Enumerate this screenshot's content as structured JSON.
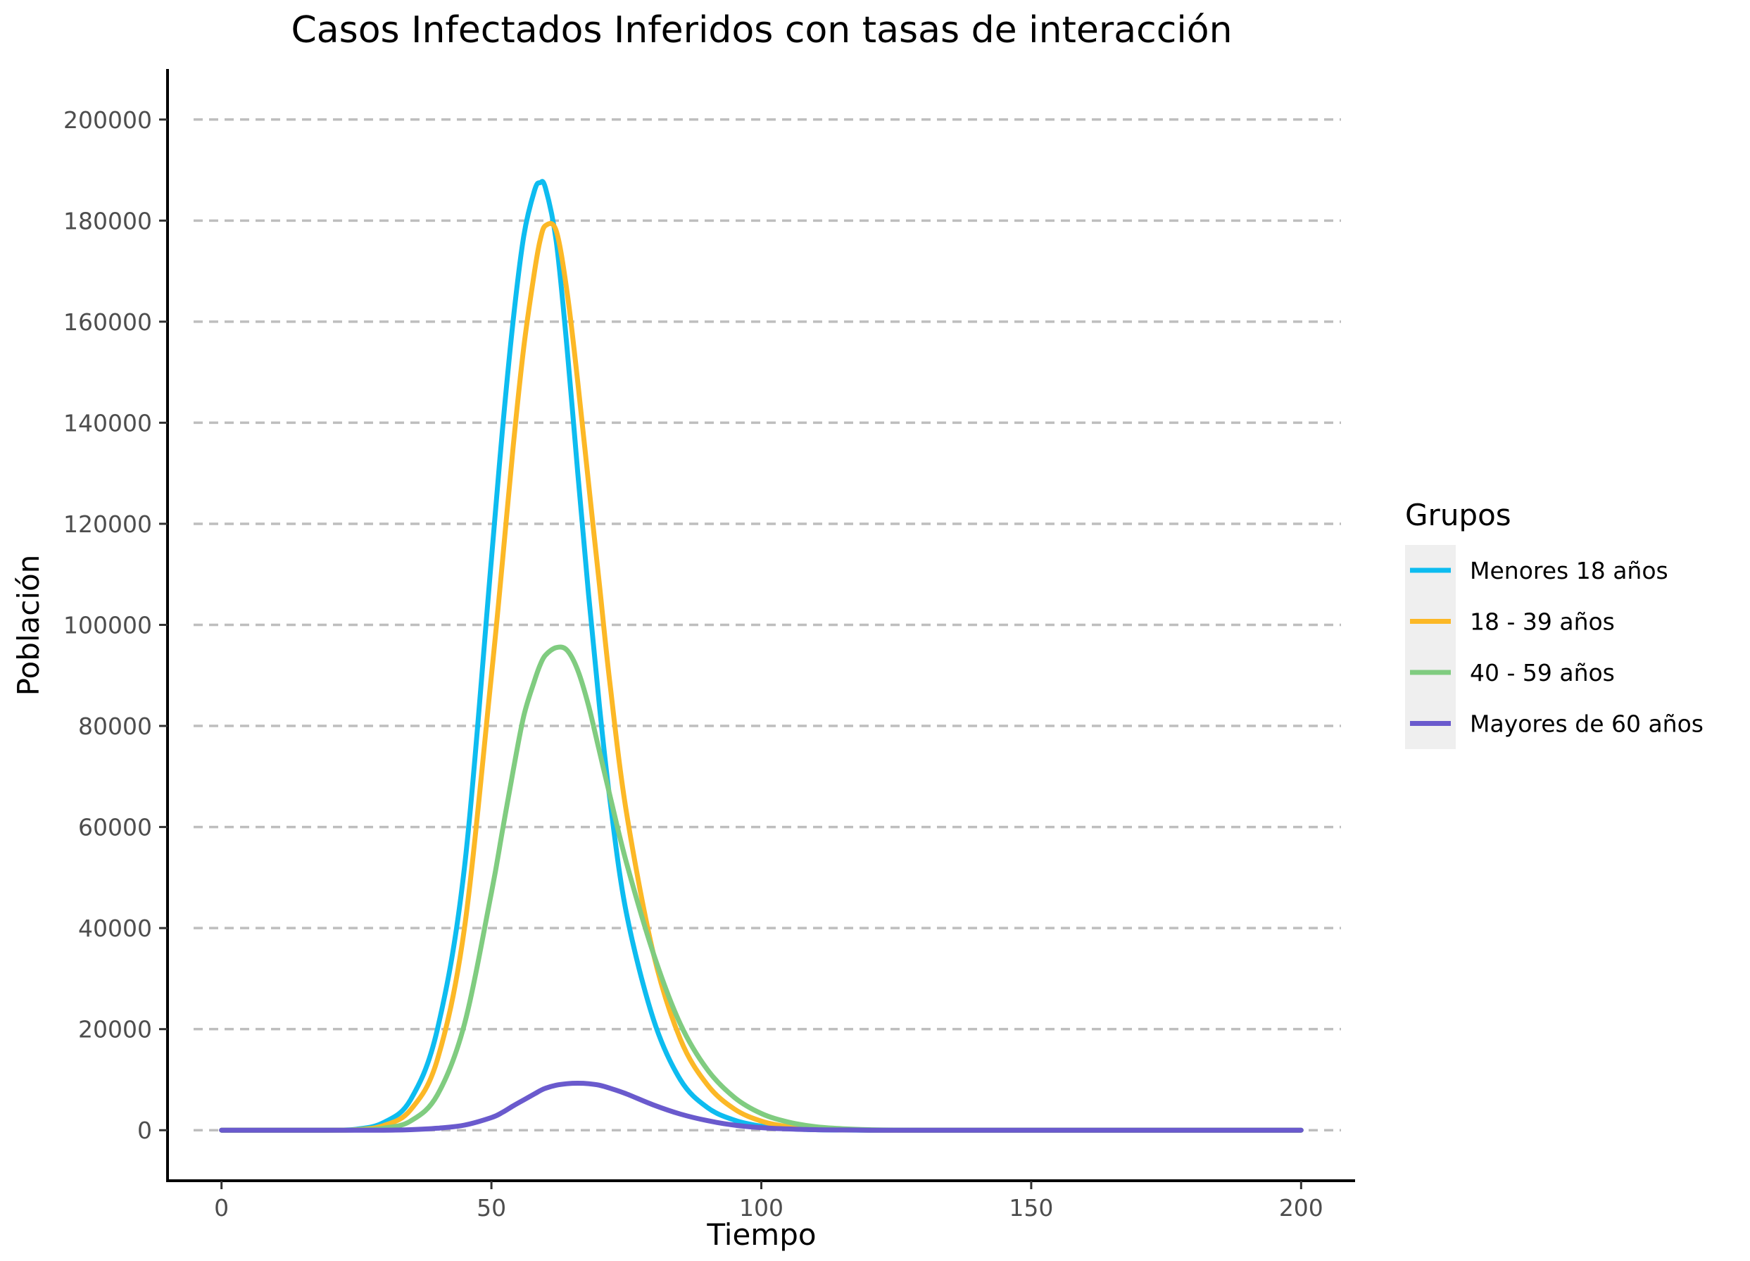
{
  "chart_data": {
    "type": "line",
    "title": "Casos Infectados Inferidos con tasas de interacción",
    "xlabel": "Tiempo",
    "ylabel": "Población",
    "xlim": [
      -10,
      210
    ],
    "ylim": [
      -10000,
      210000
    ],
    "xticks": [
      0,
      50,
      100,
      150,
      200
    ],
    "yticks": [
      0,
      20000,
      40000,
      60000,
      80000,
      100000,
      120000,
      140000,
      160000,
      180000,
      200000
    ],
    "grid": "horizontal dashed",
    "legend": {
      "title": "Grupos",
      "placement": "right"
    },
    "x": [
      0,
      5,
      10,
      15,
      20,
      25,
      30,
      35,
      40,
      45,
      50,
      52,
      54,
      56,
      58,
      59,
      60,
      62,
      64,
      66,
      68,
      70,
      72,
      75,
      80,
      85,
      90,
      95,
      100,
      105,
      110,
      115,
      120,
      125,
      130,
      140,
      150,
      160,
      170,
      180,
      190,
      200
    ],
    "series": [
      {
        "name": "Menores 18 años",
        "color": "#0dbcf0",
        "values": [
          0,
          0,
          0,
          0,
          20,
          200,
          1500,
          6000,
          20000,
          52000,
          113000,
          138000,
          160000,
          177000,
          186000,
          187500,
          186500,
          176000,
          155000,
          130000,
          106000,
          84000,
          65000,
          43000,
          22000,
          10000,
          4500,
          2000,
          800,
          300,
          100,
          30,
          0,
          0,
          0,
          0,
          0,
          0,
          0,
          0,
          0,
          0
        ]
      },
      {
        "name": "18 - 39 años",
        "color": "#fcb826",
        "values": [
          0,
          0,
          0,
          0,
          10,
          100,
          900,
          4000,
          14000,
          40000,
          90000,
          112000,
          135000,
          155000,
          170000,
          176000,
          179000,
          178000,
          166000,
          148000,
          128000,
          108000,
          88000,
          63000,
          35000,
          18000,
          9000,
          4200,
          1800,
          700,
          250,
          80,
          20,
          0,
          0,
          0,
          0,
          0,
          0,
          0,
          0,
          0
        ]
      },
      {
        "name": "40 - 59 años",
        "color": "#80cc80",
        "values": [
          0,
          0,
          0,
          0,
          0,
          50,
          400,
          1800,
          7000,
          21000,
          47000,
          59000,
          71000,
          82000,
          89000,
          92000,
          94000,
          95500,
          95000,
          91000,
          84000,
          75000,
          66000,
          53000,
          35000,
          21000,
          12000,
          6500,
          3300,
          1600,
          700,
          300,
          100,
          30,
          0,
          0,
          0,
          0,
          0,
          0,
          0,
          0
        ]
      },
      {
        "name": "Mayores de 60 años",
        "color": "#6a5acd",
        "values": [
          0,
          0,
          0,
          0,
          0,
          0,
          0,
          100,
          400,
          1000,
          2500,
          3500,
          4800,
          6000,
          7200,
          7800,
          8300,
          8900,
          9200,
          9300,
          9200,
          8900,
          8300,
          7200,
          5000,
          3200,
          1900,
          1000,
          500,
          250,
          100,
          40,
          10,
          0,
          0,
          0,
          0,
          0,
          0,
          0,
          0,
          0
        ]
      }
    ]
  }
}
